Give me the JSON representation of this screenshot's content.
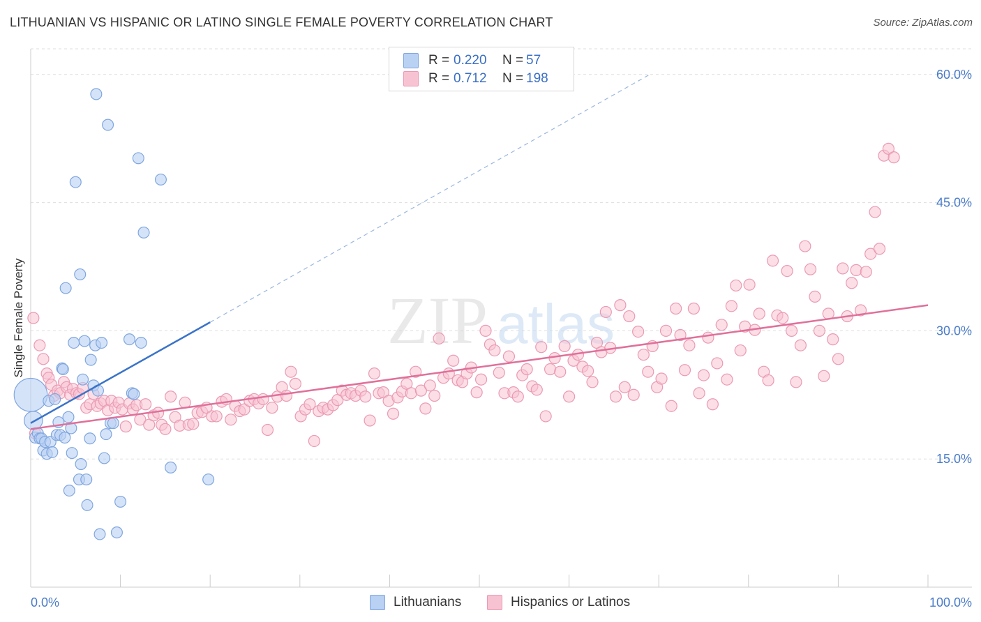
{
  "header": {
    "title": "LITHUANIAN VS HISPANIC OR LATINO SINGLE FEMALE POVERTY CORRELATION CHART",
    "source": "Source: ZipAtlas.com"
  },
  "watermark": "ZIPatlas",
  "colors": {
    "blue_fill": "#b9d1f3",
    "blue_stroke": "#7fa6df",
    "blue_line": "#3a73c9",
    "pink_fill": "#f7c3d2",
    "pink_stroke": "#eb9ab3",
    "pink_line": "#e0709a",
    "tick_text": "#4a7cc9",
    "grid": "#dddddd"
  },
  "legend": {
    "rows": [
      {
        "r_label": "R =",
        "r_value": "0.220",
        "n_label": "N =",
        "n_value": "57"
      },
      {
        "r_label": "R =",
        "r_value": "0.712",
        "n_label": "N =",
        "n_value": "198"
      }
    ]
  },
  "bottom_legend": {
    "items": [
      {
        "label": "Lithuanians"
      },
      {
        "label": "Hispanics or Latinos"
      }
    ]
  },
  "chart_data": {
    "type": "scatter",
    "xlabel": "",
    "ylabel": "Single Female Poverty",
    "xlim": [
      0,
      100
    ],
    "ylim": [
      0,
      63
    ],
    "x_tick_labels": [
      "0.0%",
      "100.0%"
    ],
    "y_ticks": [
      15,
      30,
      45,
      60
    ],
    "y_tick_labels": [
      "15.0%",
      "30.0%",
      "45.0%",
      "60.0%"
    ],
    "grid": true,
    "legend_position": "top-center",
    "series": [
      {
        "name": "Lithuanians",
        "trend": {
          "x0": 0,
          "y0": 19.2,
          "x1": 20,
          "y1": 31.0,
          "dashed_to": {
            "x": 69,
            "y": 60.0
          }
        },
        "points": [
          [
            0.0,
            22.5,
            36
          ],
          [
            0.3,
            19.5,
            20
          ],
          [
            0.5,
            17.5,
            12
          ],
          [
            0.8,
            18.0,
            12
          ],
          [
            1.0,
            17.4,
            12
          ],
          [
            1.2,
            17.4,
            12
          ],
          [
            1.4,
            16.0,
            12
          ],
          [
            1.6,
            17.0,
            12
          ],
          [
            1.8,
            15.6,
            12
          ],
          [
            2.0,
            21.8,
            12
          ],
          [
            2.2,
            17.0,
            12
          ],
          [
            2.4,
            15.8,
            12
          ],
          [
            2.7,
            22.0,
            12
          ],
          [
            2.9,
            17.8,
            12
          ],
          [
            3.1,
            19.3,
            12
          ],
          [
            3.3,
            17.8,
            12
          ],
          [
            3.5,
            25.6,
            12
          ],
          [
            3.6,
            25.5,
            12
          ],
          [
            3.8,
            17.5,
            12
          ],
          [
            3.9,
            35.0,
            12
          ],
          [
            4.2,
            19.9,
            12
          ],
          [
            4.3,
            11.3,
            12
          ],
          [
            4.5,
            18.6,
            12
          ],
          [
            4.6,
            15.7,
            12
          ],
          [
            4.8,
            28.6,
            12
          ],
          [
            5.0,
            47.4,
            12
          ],
          [
            5.4,
            12.6,
            12
          ],
          [
            5.5,
            36.6,
            12
          ],
          [
            5.6,
            14.4,
            12
          ],
          [
            5.8,
            24.3,
            12
          ],
          [
            6.0,
            28.8,
            12
          ],
          [
            6.2,
            12.6,
            12
          ],
          [
            6.3,
            9.6,
            12
          ],
          [
            6.6,
            17.4,
            12
          ],
          [
            6.7,
            26.6,
            12
          ],
          [
            7.0,
            23.6,
            12
          ],
          [
            7.2,
            28.3,
            12
          ],
          [
            7.3,
            57.7,
            12
          ],
          [
            7.5,
            23.0,
            12
          ],
          [
            7.7,
            6.2,
            12
          ],
          [
            7.9,
            28.6,
            12
          ],
          [
            8.2,
            15.1,
            12
          ],
          [
            8.4,
            17.9,
            12
          ],
          [
            8.6,
            54.1,
            12
          ],
          [
            8.9,
            19.2,
            12
          ],
          [
            9.2,
            19.2,
            12
          ],
          [
            9.6,
            6.4,
            12
          ],
          [
            10.0,
            10.0,
            12
          ],
          [
            11.0,
            29.0,
            12
          ],
          [
            11.3,
            22.7,
            12
          ],
          [
            11.5,
            22.6,
            12
          ],
          [
            12.0,
            50.2,
            12
          ],
          [
            12.3,
            28.6,
            12
          ],
          [
            12.6,
            41.5,
            12
          ],
          [
            14.5,
            47.7,
            12
          ],
          [
            15.6,
            14.0,
            12
          ],
          [
            19.8,
            12.6,
            12
          ]
        ]
      },
      {
        "name": "Hispanics or Latinos",
        "trend": {
          "x0": 0,
          "y0": 18.5,
          "x1": 100,
          "y1": 33.0
        },
        "points": [
          [
            0.3,
            31.5
          ],
          [
            0.5,
            18.0
          ],
          [
            1.0,
            28.3
          ],
          [
            1.4,
            26.7
          ],
          [
            1.8,
            25.0
          ],
          [
            2.0,
            24.5
          ],
          [
            2.3,
            23.7
          ],
          [
            2.6,
            22.4
          ],
          [
            3.0,
            23.0
          ],
          [
            3.3,
            22.7
          ],
          [
            3.7,
            24.0
          ],
          [
            4.0,
            23.4
          ],
          [
            4.4,
            22.5
          ],
          [
            4.7,
            23.2
          ],
          [
            5.1,
            22.7
          ],
          [
            5.4,
            22.6
          ],
          [
            5.8,
            23.3
          ],
          [
            6.2,
            21.0
          ],
          [
            6.6,
            21.4
          ],
          [
            7.0,
            22.6
          ],
          [
            7.4,
            21.2
          ],
          [
            7.8,
            21.5
          ],
          [
            8.2,
            21.8
          ],
          [
            8.6,
            20.7
          ],
          [
            9.0,
            21.8
          ],
          [
            9.4,
            21.0
          ],
          [
            9.8,
            21.6
          ],
          [
            10.2,
            20.8
          ],
          [
            10.6,
            18.8
          ],
          [
            11.0,
            21.5
          ],
          [
            11.4,
            20.8
          ],
          [
            11.8,
            21.3
          ],
          [
            12.2,
            19.6
          ],
          [
            12.8,
            21.4
          ],
          [
            13.2,
            19.0
          ],
          [
            13.7,
            20.1
          ],
          [
            14.2,
            20.4
          ],
          [
            14.6,
            19.0
          ],
          [
            15.0,
            18.5
          ],
          [
            15.6,
            22.3
          ],
          [
            16.1,
            19.9
          ],
          [
            16.6,
            18.9
          ],
          [
            17.2,
            21.6
          ],
          [
            17.6,
            19.0
          ],
          [
            18.1,
            19.1
          ],
          [
            18.6,
            20.4
          ],
          [
            19.1,
            20.5
          ],
          [
            19.6,
            21.0
          ],
          [
            20.2,
            20.0
          ],
          [
            20.7,
            20.0
          ],
          [
            21.3,
            21.7
          ],
          [
            21.8,
            22.0
          ],
          [
            22.3,
            19.6
          ],
          [
            22.8,
            21.2
          ],
          [
            23.3,
            20.6
          ],
          [
            23.8,
            20.8
          ],
          [
            24.4,
            21.8
          ],
          [
            24.9,
            22.0
          ],
          [
            25.4,
            21.5
          ],
          [
            25.9,
            22.0
          ],
          [
            26.4,
            18.4
          ],
          [
            26.9,
            21.0
          ],
          [
            27.5,
            22.3
          ],
          [
            28.0,
            23.4
          ],
          [
            28.5,
            22.4
          ],
          [
            29.0,
            25.2
          ],
          [
            29.5,
            23.8
          ],
          [
            30.1,
            20.0
          ],
          [
            30.6,
            20.8
          ],
          [
            31.1,
            21.4
          ],
          [
            31.6,
            17.1
          ],
          [
            32.1,
            20.6
          ],
          [
            32.6,
            21.0
          ],
          [
            33.1,
            20.8
          ],
          [
            33.7,
            21.3
          ],
          [
            34.2,
            21.9
          ],
          [
            34.7,
            23.0
          ],
          [
            35.2,
            22.5
          ],
          [
            35.7,
            22.7
          ],
          [
            36.2,
            22.4
          ],
          [
            36.8,
            23.0
          ],
          [
            37.3,
            22.3
          ],
          [
            37.8,
            19.5
          ],
          [
            38.3,
            25.0
          ],
          [
            38.8,
            22.7
          ],
          [
            39.3,
            22.8
          ],
          [
            39.9,
            21.8
          ],
          [
            40.4,
            20.3
          ],
          [
            40.9,
            22.2
          ],
          [
            41.4,
            22.9
          ],
          [
            41.9,
            23.8
          ],
          [
            42.4,
            22.7
          ],
          [
            42.9,
            25.2
          ],
          [
            43.5,
            23.0
          ],
          [
            44.0,
            20.9
          ],
          [
            44.5,
            23.6
          ],
          [
            45.0,
            22.4
          ],
          [
            45.5,
            29.1
          ],
          [
            46.0,
            24.5
          ],
          [
            46.6,
            25.0
          ],
          [
            47.1,
            26.5
          ],
          [
            47.6,
            24.2
          ],
          [
            48.1,
            24.0
          ],
          [
            48.6,
            25.0
          ],
          [
            49.1,
            25.7
          ],
          [
            49.7,
            22.8
          ],
          [
            50.2,
            24.3
          ],
          [
            50.7,
            30.0
          ],
          [
            51.2,
            28.4
          ],
          [
            51.7,
            27.7
          ],
          [
            52.2,
            25.1
          ],
          [
            52.8,
            22.7
          ],
          [
            53.3,
            27.0
          ],
          [
            53.8,
            22.8
          ],
          [
            54.3,
            22.3
          ],
          [
            54.8,
            24.8
          ],
          [
            55.3,
            25.5
          ],
          [
            55.9,
            23.5
          ],
          [
            56.4,
            23.1
          ],
          [
            56.9,
            28.1
          ],
          [
            57.4,
            20.0
          ],
          [
            57.9,
            25.5
          ],
          [
            58.4,
            26.8
          ],
          [
            59.0,
            25.2
          ],
          [
            59.5,
            28.2
          ],
          [
            60.0,
            22.3
          ],
          [
            60.5,
            26.5
          ],
          [
            61.0,
            27.2
          ],
          [
            61.5,
            25.8
          ],
          [
            62.1,
            25.3
          ],
          [
            62.6,
            24.0
          ],
          [
            63.1,
            28.6
          ],
          [
            63.6,
            27.5
          ],
          [
            64.1,
            32.2
          ],
          [
            64.6,
            28.0
          ],
          [
            65.2,
            22.3
          ],
          [
            65.7,
            33.0
          ],
          [
            66.2,
            23.4
          ],
          [
            66.7,
            31.7
          ],
          [
            67.2,
            22.5
          ],
          [
            67.7,
            29.9
          ],
          [
            68.3,
            27.2
          ],
          [
            68.8,
            25.2
          ],
          [
            69.3,
            28.2
          ],
          [
            69.8,
            23.4
          ],
          [
            70.3,
            24.4
          ],
          [
            70.8,
            30.0
          ],
          [
            71.4,
            21.2
          ],
          [
            71.9,
            32.6
          ],
          [
            72.4,
            29.5
          ],
          [
            72.9,
            25.4
          ],
          [
            73.4,
            28.3
          ],
          [
            73.9,
            32.6
          ],
          [
            74.5,
            22.7
          ],
          [
            75.0,
            24.8
          ],
          [
            75.5,
            29.2
          ],
          [
            76.0,
            21.4
          ],
          [
            76.5,
            26.2
          ],
          [
            77.0,
            30.7
          ],
          [
            77.6,
            24.3
          ],
          [
            78.1,
            32.9
          ],
          [
            78.6,
            35.3
          ],
          [
            79.1,
            27.7
          ],
          [
            79.6,
            30.5
          ],
          [
            80.1,
            35.4
          ],
          [
            80.7,
            30.1
          ],
          [
            81.2,
            32.0
          ],
          [
            81.7,
            25.2
          ],
          [
            82.2,
            24.2
          ],
          [
            82.7,
            38.2
          ],
          [
            83.2,
            31.8
          ],
          [
            83.8,
            31.5
          ],
          [
            84.3,
            37.0
          ],
          [
            84.8,
            30.0
          ],
          [
            85.3,
            24.0
          ],
          [
            85.8,
            28.3
          ],
          [
            86.3,
            39.9
          ],
          [
            86.9,
            37.2
          ],
          [
            87.4,
            34.0
          ],
          [
            87.9,
            30.0
          ],
          [
            88.4,
            24.7
          ],
          [
            88.9,
            32.0
          ],
          [
            89.4,
            29.0
          ],
          [
            90.0,
            26.7
          ],
          [
            90.5,
            37.3
          ],
          [
            91.0,
            31.7
          ],
          [
            91.5,
            35.6
          ],
          [
            92.0,
            37.1
          ],
          [
            92.5,
            32.4
          ],
          [
            93.1,
            36.9
          ],
          [
            93.6,
            39.0
          ],
          [
            94.1,
            43.9
          ],
          [
            94.6,
            39.6
          ],
          [
            95.1,
            50.5
          ],
          [
            95.6,
            51.3
          ],
          [
            96.2,
            50.3
          ]
        ]
      }
    ]
  }
}
